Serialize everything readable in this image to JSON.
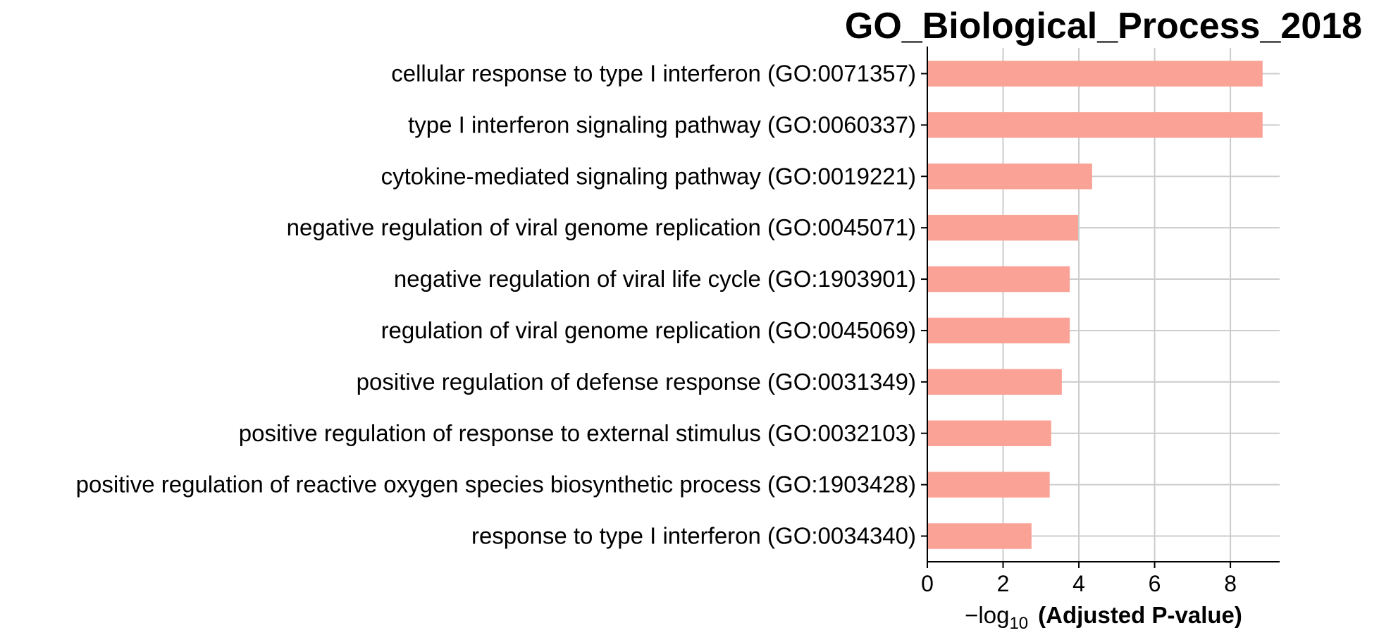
{
  "chart_data": {
    "type": "bar",
    "orientation": "horizontal",
    "title": "GO_Biological_Process_2018",
    "xlabel_prefix": "−log",
    "xlabel_subscript": "10",
    "xlabel": "(Adjusted P-value)",
    "xlim": [
      0,
      9.3
    ],
    "xticks": [
      "0",
      "2",
      "4",
      "6",
      "8"
    ],
    "grid": true,
    "bar_color": "#f9a295",
    "categories": [
      "cellular response to type I interferon (GO:0071357)",
      "type I interferon signaling pathway (GO:0060337)",
      "cytokine-mediated signaling pathway (GO:0019221)",
      "negative regulation of viral genome replication (GO:0045071)",
      "negative regulation of viral life cycle (GO:1903901)",
      "regulation of viral genome replication (GO:0045069)",
      "positive regulation of defense response (GO:0031349)",
      "positive regulation of response to external stimulus (GO:0032103)",
      "positive regulation of reactive oxygen species biosynthetic process (GO:1903428)",
      "response to type I interferon (GO:0034340)"
    ],
    "values": [
      8.85,
      8.85,
      4.35,
      3.98,
      3.76,
      3.76,
      3.55,
      3.27,
      3.23,
      2.75
    ]
  }
}
